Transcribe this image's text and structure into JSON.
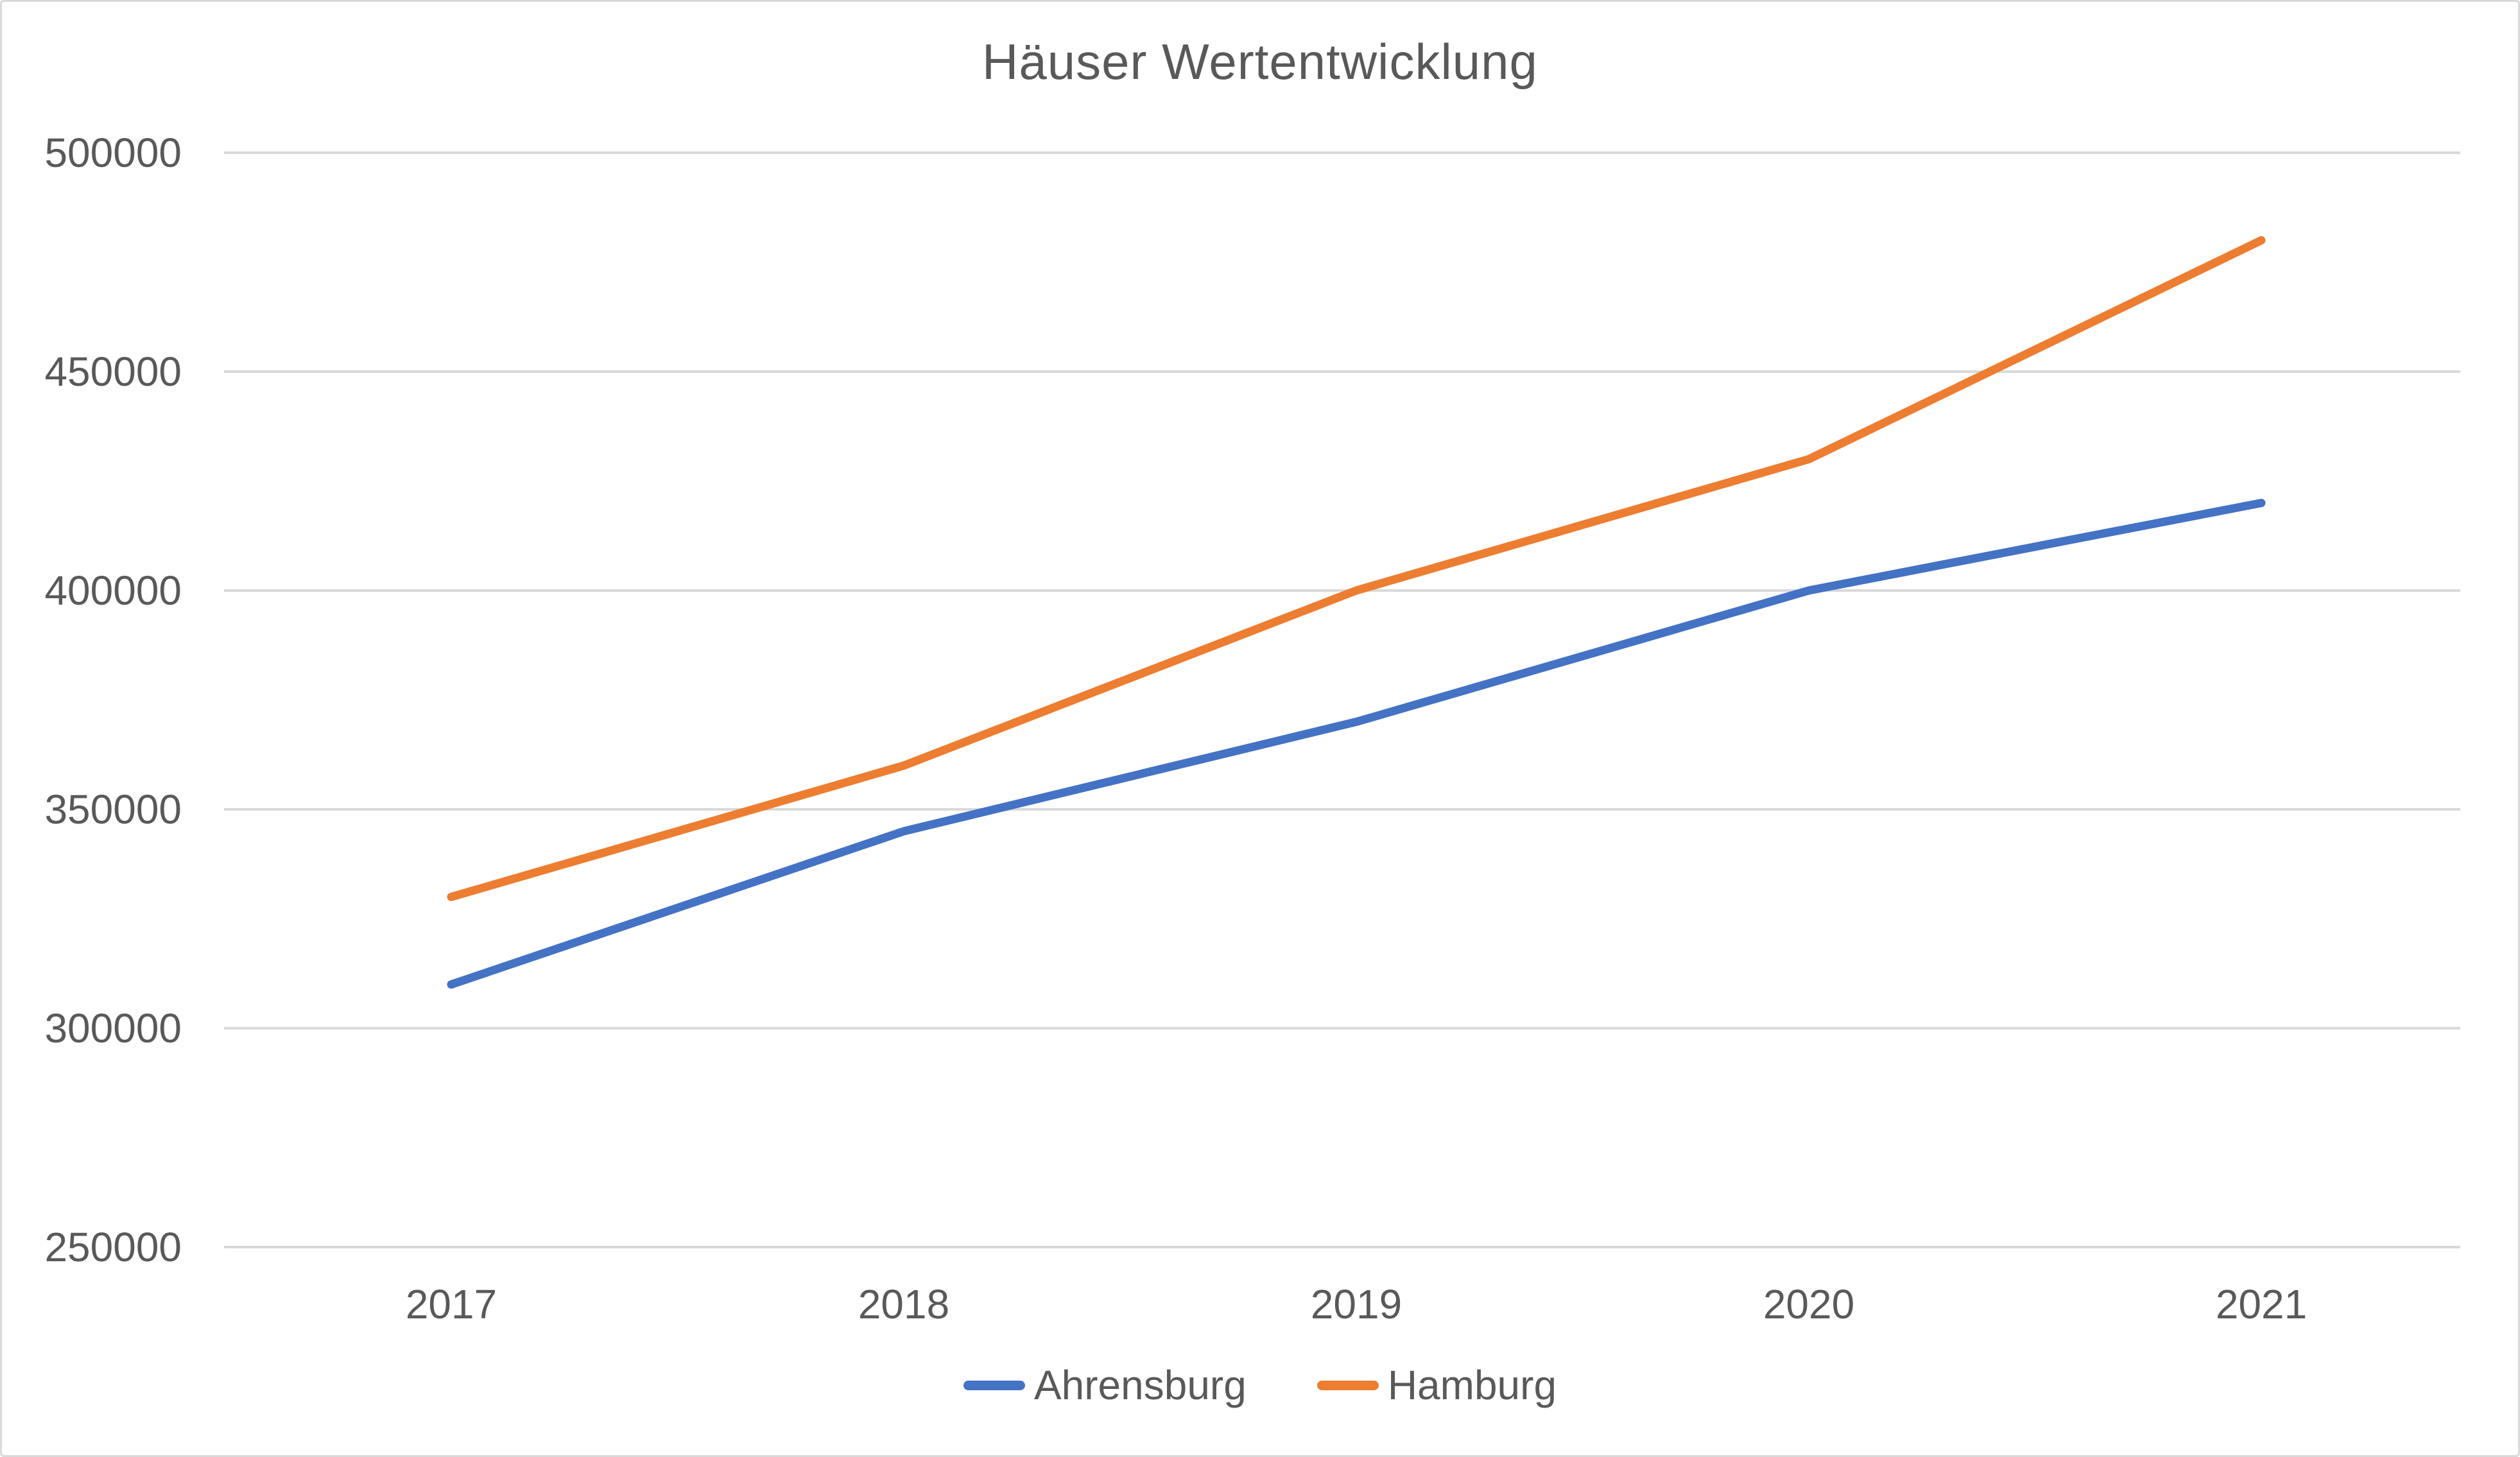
{
  "chart_data": {
    "type": "line",
    "title": "Häuser Wertentwicklung",
    "x": [
      2017,
      2018,
      2019,
      2020,
      2021
    ],
    "x_tick_labels": [
      "2017",
      "2018",
      "2019",
      "2020",
      "2021"
    ],
    "y_tick_labels": [
      "500000",
      "450000",
      "400000",
      "350000",
      "300000",
      "250000"
    ],
    "y_ticks": [
      500000,
      450000,
      400000,
      350000,
      300000,
      250000
    ],
    "ylim": [
      250000,
      500000
    ],
    "xlabel": "",
    "ylabel": "",
    "grid": "horizontal-only",
    "legend_position": "bottom-center",
    "series": [
      {
        "name": "Ahrensburg",
        "color": "#4472C4",
        "values": [
          310000,
          345000,
          370000,
          400000,
          420000
        ]
      },
      {
        "name": "Hamburg",
        "color": "#ED7D31",
        "values": [
          330000,
          360000,
          400000,
          430000,
          480000
        ]
      }
    ]
  },
  "colors": {
    "text": "#595959",
    "gridline": "#d9d9d9",
    "border": "#d9d9d9",
    "background": "#ffffff"
  }
}
